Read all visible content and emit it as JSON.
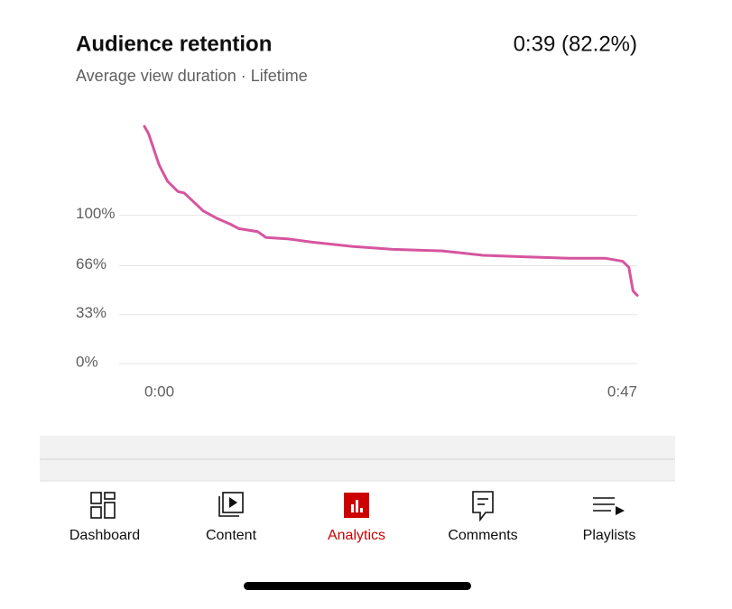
{
  "chart_data": {
    "type": "line",
    "title": "Audience retention",
    "annotation": "0:39 (82.2%)",
    "subtitle": "Average view duration · Lifetime",
    "x": [
      0,
      0.4,
      1.4,
      2.2,
      3.2,
      3.8,
      4.7,
      5.6,
      6.9,
      8.2,
      9,
      10.8,
      11.6,
      13.8,
      15.9,
      19.8,
      23.7,
      28.4,
      32.3,
      36.2,
      40.5,
      44,
      45.6,
      46.2,
      46.6,
      47
    ],
    "series": [
      {
        "color": "#d6559f",
        "values": [
          160,
          155,
          134,
          123,
          116,
          115,
          109,
          103,
          98,
          94,
          91,
          89,
          85,
          84,
          82,
          79,
          77,
          76,
          73,
          72,
          71,
          71,
          69,
          65,
          49,
          46
        ]
      }
    ],
    "xlim": [
      0,
      47
    ],
    "xticks": [
      {
        "value": 0,
        "label": "0:00"
      },
      {
        "value": 47,
        "label": "0:47"
      }
    ],
    "ylim": [
      0,
      160
    ],
    "yticks": [
      {
        "value": 0,
        "label": "0%"
      },
      {
        "value": 33,
        "label": "33%"
      },
      {
        "value": 66,
        "label": "66%"
      },
      {
        "value": 100,
        "label": "100%"
      }
    ],
    "grid": true
  },
  "nav": {
    "tabs": [
      "Dashboard",
      "Content",
      "Analytics",
      "Comments",
      "Playlists"
    ]
  }
}
